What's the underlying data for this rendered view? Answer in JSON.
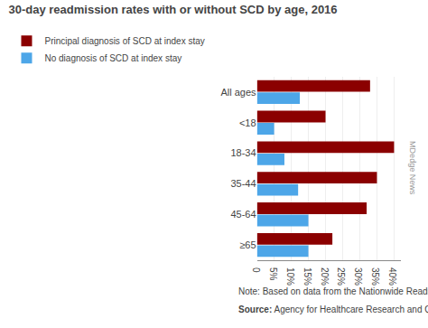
{
  "chart_data": {
    "type": "bar",
    "orientation": "horizontal",
    "title": "30-day readmission rates with or without SCD by age, 2016",
    "categories": [
      "≥65",
      "45-64",
      "35-44",
      "18-34",
      "<18",
      "All ages"
    ],
    "series": [
      {
        "name": "Principal diagnosis of SCD at index stay",
        "color": "#8B0000",
        "values": [
          22,
          32,
          35,
          40,
          20,
          33
        ]
      },
      {
        "name": "No diagnosis of SCD at index stay",
        "color": "#4da6e8",
        "values": [
          15,
          15,
          12,
          8,
          5,
          12.5
        ]
      }
    ],
    "xlim": [
      0,
      42
    ],
    "xticks": [
      0,
      {
        "value": 5,
        "label": "5%"
      },
      {
        "value": 10,
        "label": "10%"
      },
      {
        "value": 15,
        "label": "15%"
      },
      {
        "value": 20,
        "label": "20%"
      },
      {
        "value": 25,
        "label": "25%"
      },
      {
        "value": 30,
        "label": "30%"
      },
      {
        "value": 35,
        "label": "35%"
      },
      {
        "value": 40,
        "label": "40%"
      }
    ],
    "grid": true,
    "legend": "upper left",
    "annotations": [
      "MDedge News",
      "Note: Based on data from the Nationwide Readmissions Database.",
      "Source: Agency for Healthcare Research and Quality"
    ]
  }
}
